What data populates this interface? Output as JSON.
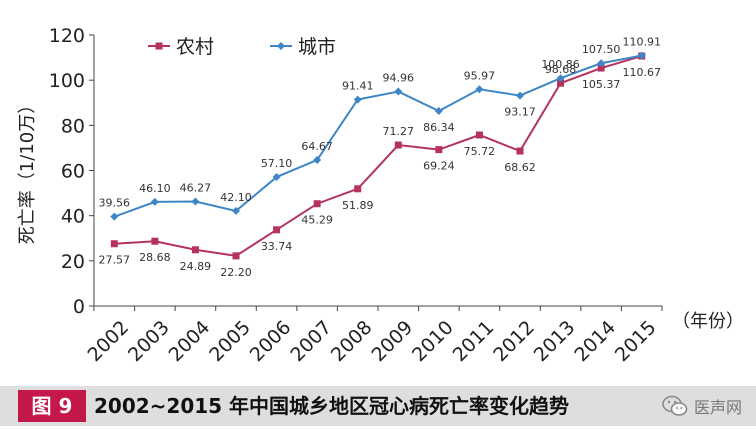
{
  "chart_data": {
    "type": "line",
    "title": "",
    "ylabel": "死亡率（1/10万）",
    "xlabel": "（年份）",
    "ylim": [
      0,
      120
    ],
    "yticks": [
      0,
      20,
      40,
      60,
      80,
      100,
      120
    ],
    "grid": false,
    "legend_position": "top-left",
    "categories": [
      "2002",
      "2003",
      "2004",
      "2005",
      "2006",
      "2007",
      "2008",
      "2009",
      "2010",
      "2011",
      "2012",
      "2013",
      "2014",
      "2015"
    ],
    "series": [
      {
        "name": "农村",
        "color": "#b5325c",
        "marker": "square",
        "values": [
          27.57,
          28.68,
          24.89,
          22.2,
          33.74,
          45.29,
          51.89,
          71.27,
          69.24,
          75.72,
          68.62,
          98.68,
          105.37,
          110.67
        ],
        "labels": [
          "27.57",
          "28.68",
          "24.89",
          "22.20",
          "33.74",
          "45.29",
          "51.89",
          "71.27",
          "69.24",
          "75.72",
          "68.62",
          "98.68",
          "105.37",
          "110.67"
        ]
      },
      {
        "name": "城市",
        "color": "#3e86c6",
        "marker": "diamond",
        "values": [
          39.56,
          46.1,
          46.27,
          42.1,
          57.1,
          64.67,
          91.41,
          94.96,
          86.34,
          95.97,
          93.17,
          100.86,
          107.5,
          110.91
        ],
        "labels": [
          "39.56",
          "46.10",
          "46.27",
          "42.10",
          "57.10",
          "64.67",
          "91.41",
          "94.96",
          "86.34",
          "95.97",
          "93.17",
          "100.86",
          "107.50",
          "110.91"
        ]
      }
    ]
  },
  "caption": {
    "badge": "图 9",
    "title": "2002~2015 年中国城乡地区冠心病死亡率变化趋势"
  },
  "watermark": {
    "text": "医声网",
    "icon": "wechat-icon"
  }
}
